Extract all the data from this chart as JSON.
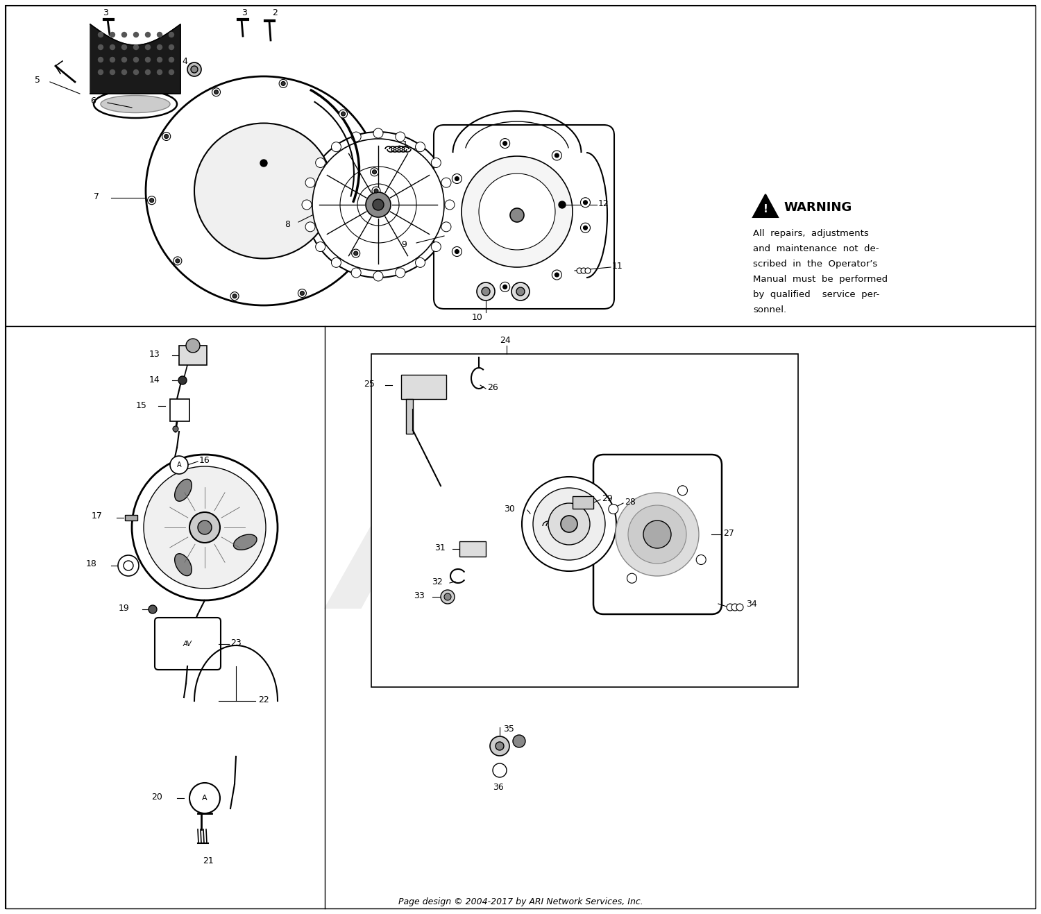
{
  "bg_color": "#ffffff",
  "fig_width": 15.0,
  "fig_height": 13.17,
  "footer_text": "Page design © 2004-2017 by ARI Network Services, Inc.",
  "warning_text_line1": "All  repairs,  adjustments",
  "warning_text_line2": "and  maintenance  not  de-",
  "warning_text_line3": "scribed  in  the  Operator’s",
  "warning_text_line4": "Manual  must  be  performed",
  "warning_text_line5": "by  qualified    service  per-",
  "warning_text_line6": "sonnel."
}
